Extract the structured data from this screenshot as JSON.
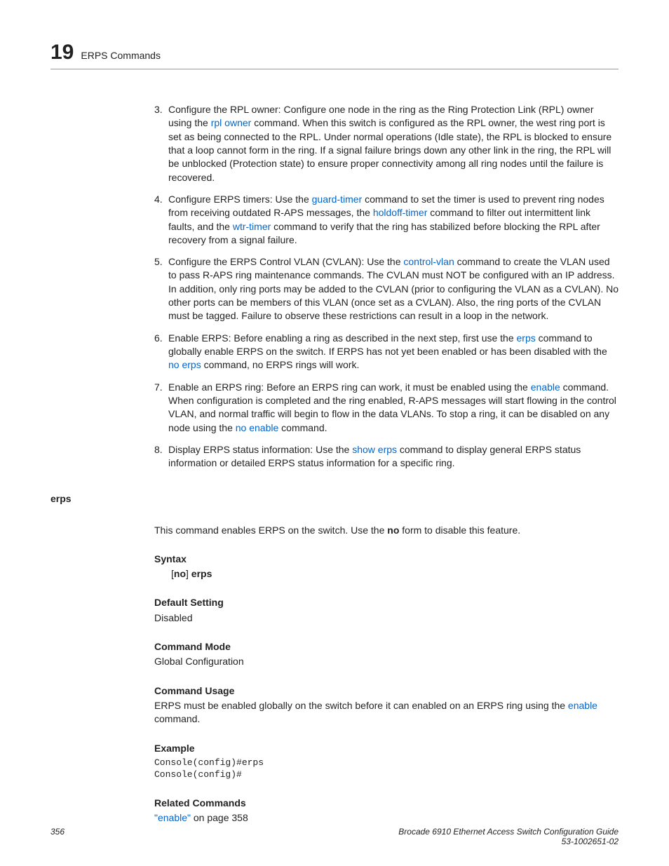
{
  "header": {
    "chapter_number": "19",
    "title": "ERPS Commands"
  },
  "list": [
    {
      "num": "3.",
      "prefix": "Configure the RPL owner: Configure one node in the ring as the Ring Protection Link (RPL) owner using the ",
      "link1": "rpl owner",
      "suffix": " command. When this switch is configured as the RPL owner, the west ring port is set as being connected to the RPL. Under normal operations (Idle state), the RPL is blocked to ensure that a loop cannot form in the ring. If a signal failure brings down any other link in the ring, the RPL will be unblocked (Protection state) to ensure proper connectivity among all ring nodes until the failure is recovered."
    },
    {
      "num": "4.",
      "t1": "Configure ERPS timers: Use the ",
      "link1": "guard-timer",
      "t2": " command to set the timer is used to prevent ring nodes from receiving outdated R-APS messages, the ",
      "link2": "holdoff-timer",
      "t3": " command to filter out intermittent link faults, and the ",
      "link3": "wtr-timer",
      "t4": " command to verify that the ring has stabilized before blocking the RPL after recovery from a signal failure."
    },
    {
      "num": "5.",
      "t1": "Configure the ERPS Control VLAN (CVLAN): Use the ",
      "link1": "control-vlan",
      "t2": " command to create the VLAN used to pass R-APS ring maintenance commands. The CVLAN must NOT be configured with an IP address. In addition, only ring ports may be added to the CVLAN (prior to configuring the VLAN as a CVLAN). No other ports can be members of this VLAN (once set as a CVLAN). Also, the ring ports of the CVLAN must be tagged. Failure to observe these restrictions can result in a loop in the network."
    },
    {
      "num": "6.",
      "t1": "Enable ERPS: Before enabling a ring as described in the next step, first use the ",
      "link1": "erps",
      "t2": " command to globally enable ERPS on the switch. If ERPS has not yet been enabled or has been disabled with the ",
      "link2": "no erps",
      "t3": " command, no ERPS rings will work."
    },
    {
      "num": "7.",
      "t1": "Enable an ERPS ring: Before an ERPS ring can work, it must be enabled using the ",
      "link1": "enable",
      "t2": " command. When configuration is completed and the ring enabled, R-APS messages will start flowing in the control VLAN, and normal traffic will begin to flow in the data VLANs. To stop a ring, it can be disabled on any node using the ",
      "link2": "no enable",
      "t3": " command."
    },
    {
      "num": "8.",
      "t1": "Display ERPS status information: Use the ",
      "link1": "show erps",
      "t2": " command to display general ERPS status information or detailed ERPS status information for a specific ring."
    }
  ],
  "command_section": {
    "label": "erps",
    "intro_a": "This command enables ERPS on the switch. Use the ",
    "intro_bold": "no",
    "intro_b": " form to disable this feature.",
    "syntax_head": "Syntax",
    "syntax_a": "[",
    "syntax_bold1": "no",
    "syntax_b": "] ",
    "syntax_bold2": "erps",
    "default_head": "Default Setting",
    "default_val": "Disabled",
    "mode_head": "Command Mode",
    "mode_val": "Global Configuration",
    "usage_head": "Command Usage",
    "usage_a": "ERPS must be enabled globally on the switch before it can enabled on an ERPS ring using the ",
    "usage_link": "enable",
    "usage_b": " command.",
    "example_head": "Example",
    "example_line1": "Console(config)#erps",
    "example_line2": "Console(config)#",
    "related_head": "Related Commands",
    "related_link": "\"enable\"",
    "related_suffix": " on page 358"
  },
  "footer": {
    "page": "356",
    "line1": "Brocade 6910 Ethernet Access Switch Configuration Guide",
    "line2": "53-1002651-02"
  }
}
